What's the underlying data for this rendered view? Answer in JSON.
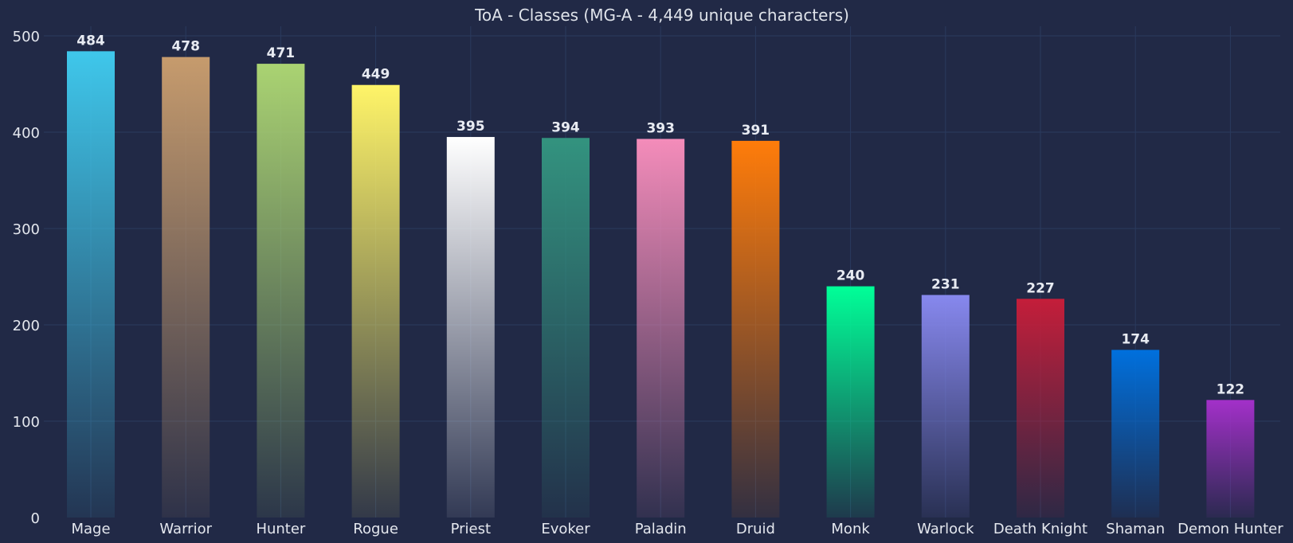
{
  "chart_data": {
    "type": "bar",
    "title": "ToA - Classes (MG-A - 4,449 unique characters)",
    "xlabel": "",
    "ylabel": "",
    "ylim": [
      0,
      500
    ],
    "yticks": [
      "0",
      "100",
      "200",
      "300",
      "400",
      "500"
    ],
    "grid": true,
    "categories": [
      "Mage",
      "Warrior",
      "Hunter",
      "Rogue",
      "Priest",
      "Evoker",
      "Paladin",
      "Druid",
      "Monk",
      "Warlock",
      "Death Knight",
      "Shaman",
      "Demon Hunter"
    ],
    "values": [
      484,
      478,
      471,
      449,
      395,
      394,
      393,
      391,
      240,
      231,
      227,
      174,
      122
    ],
    "colors": [
      "#3FC7EB",
      "#C69B6D",
      "#AAD372",
      "#FFF468",
      "#FFFFFF",
      "#33937F",
      "#F48CBA",
      "#FF7C0A",
      "#00FF98",
      "#8788EE",
      "#C41E3A",
      "#0070DD",
      "#A330C9"
    ],
    "background": "#212946",
    "grid_color": "#2a3a5e"
  }
}
